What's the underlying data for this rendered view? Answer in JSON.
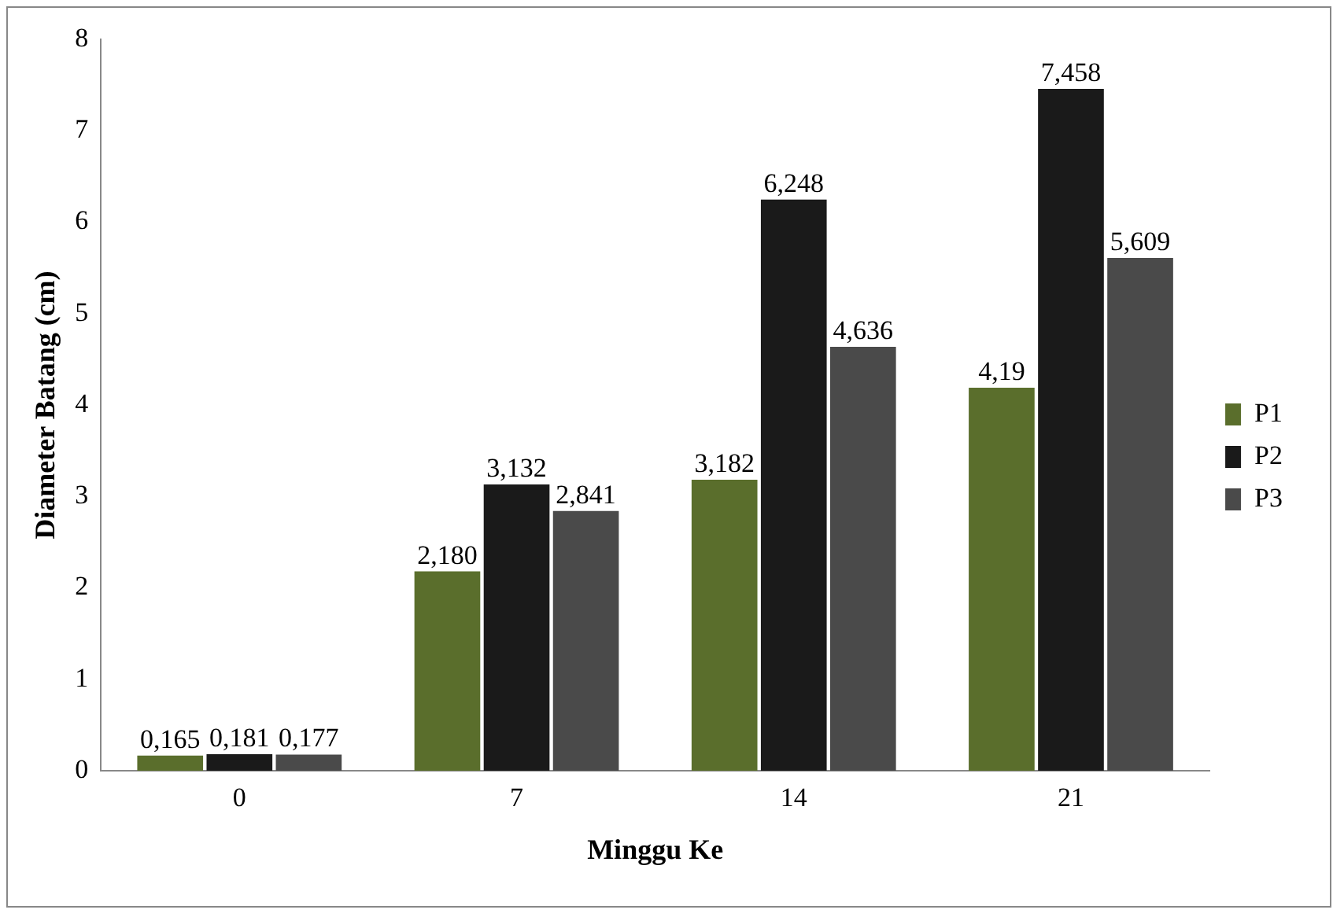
{
  "chart_data": {
    "type": "bar",
    "xlabel": "Minggu Ke",
    "ylabel": "Diameter Batang (cm)",
    "categories": [
      "0",
      "7",
      "14",
      "21"
    ],
    "series": [
      {
        "name": "P1",
        "color": "#5a6e2c",
        "values": [
          0.165,
          2.18,
          3.182,
          4.19
        ],
        "value_labels": [
          "0,165",
          "2,180",
          "3,182",
          "4,19"
        ]
      },
      {
        "name": "P2",
        "color": "#1a1a1a",
        "values": [
          0.181,
          3.132,
          6.248,
          7.458
        ],
        "value_labels": [
          "0,181",
          "3,132",
          "6,248",
          "7,458"
        ]
      },
      {
        "name": "P3",
        "color": "#4a4a4a",
        "values": [
          0.177,
          2.841,
          4.636,
          5.609
        ],
        "value_labels": [
          "0,177",
          "2,841",
          "4,636",
          "5,609"
        ]
      }
    ],
    "ylim": [
      0,
      8
    ],
    "yticks": [
      0,
      1,
      2,
      3,
      4,
      5,
      6,
      7,
      8
    ],
    "grid": false,
    "legend": "right"
  }
}
